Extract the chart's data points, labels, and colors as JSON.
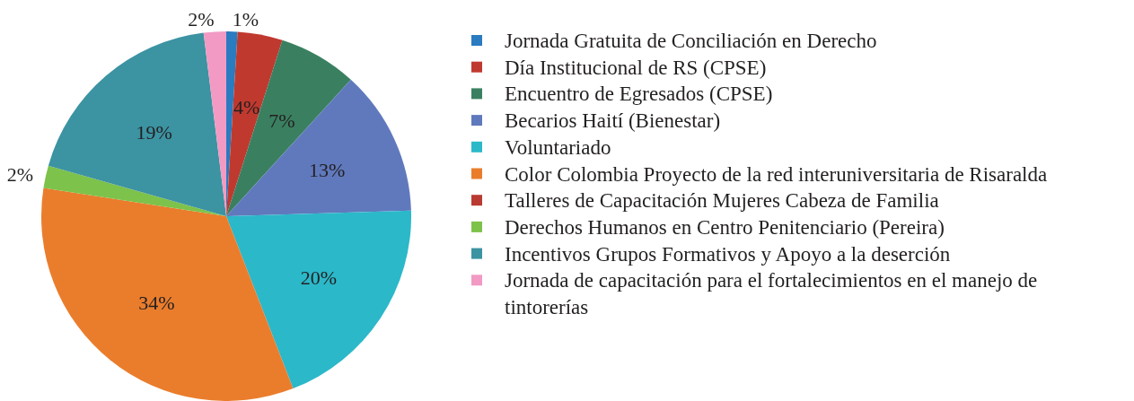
{
  "chart_data": {
    "type": "pie",
    "categories": [
      "Jornada Gratuita de Conciliación en Derecho",
      "Día Institucional de RS (CPSE)",
      "Encuentro de Egresados (CPSE)",
      "Becarios Haití (Bienestar)",
      "Voluntariado",
      "Color Colombia Proyecto de la red interuniversitaria de Risaralda",
      "Talleres de Capacitación Mujeres Cabeza de Familia",
      "Derechos Humanos en Centro Penitenciario (Pereira)",
      "Incentivos Grupos Formativos y Apoyo a la deserción",
      "Jornada de capacitación para el fortalecimientos en el manejo de tintorerías"
    ],
    "values": [
      1,
      4,
      7,
      13,
      20,
      34,
      0,
      2,
      19,
      2
    ],
    "value_labels": [
      "1%",
      "4%",
      "7%",
      "13%",
      "20%",
      "34%",
      null,
      "2%",
      "19%",
      "2%"
    ],
    "colors": [
      "#2a7bc0",
      "#c0392f",
      "#3a8060",
      "#6079bd",
      "#2bb8c9",
      "#ea7d2c",
      "#b83a32",
      "#7dc24a",
      "#3c93a2",
      "#f29ac3"
    ],
    "legend": "right"
  }
}
